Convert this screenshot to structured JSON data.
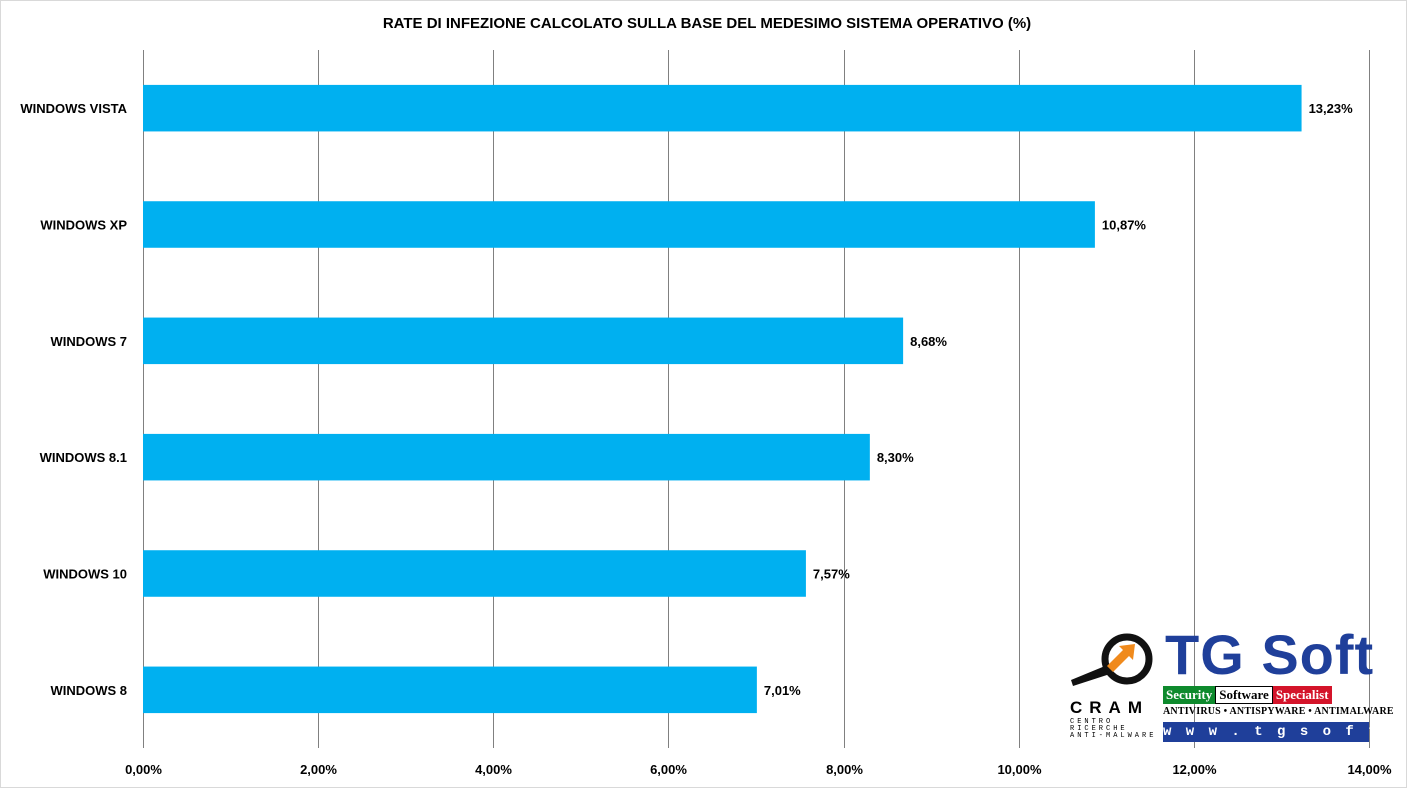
{
  "chart_data": {
    "type": "bar",
    "orientation": "horizontal",
    "title": "RATE DI INFEZIONE CALCOLATO SULLA BASE DEL MEDESIMO SISTEMA OPERATIVO (%)",
    "categories": [
      "WINDOWS VISTA",
      "WINDOWS XP",
      "WINDOWS 7",
      "WINDOWS 8.1",
      "WINDOWS 10",
      "WINDOWS 8"
    ],
    "values": [
      13.23,
      10.87,
      8.68,
      8.3,
      7.57,
      7.01
    ],
    "data_labels": [
      "13,23%",
      "10,87%",
      "8,68%",
      "8,30%",
      "7,57%",
      "7,01%"
    ],
    "x_ticks": [
      0,
      2,
      4,
      6,
      8,
      10,
      12,
      14
    ],
    "x_tick_labels": [
      "0,00%",
      "2,00%",
      "4,00%",
      "6,00%",
      "8,00%",
      "10,00%",
      "12,00%",
      "14,00%"
    ],
    "xlim": [
      0,
      14
    ],
    "grid": "vertical",
    "legend": "none",
    "colors": {
      "bar": "#00b0f0",
      "grid": "#808080"
    }
  },
  "logo": {
    "brand": "TG Soft",
    "tag_security": "Security",
    "tag_software": "Software",
    "tag_specialist": "Specialist",
    "tagline": "ANTIVIRUS • ANTISPYWARE • ANTIMALWARE",
    "url": "w w w . t g s o f t . i t",
    "cram": "CRAM",
    "cram_sub": "CENTRO RICERCHE ANTI-MALWARE",
    "colors": {
      "brand": "#1f3f9a",
      "green": "#0e8a2d",
      "red": "#d4142a",
      "orange": "#f08a1c"
    }
  }
}
